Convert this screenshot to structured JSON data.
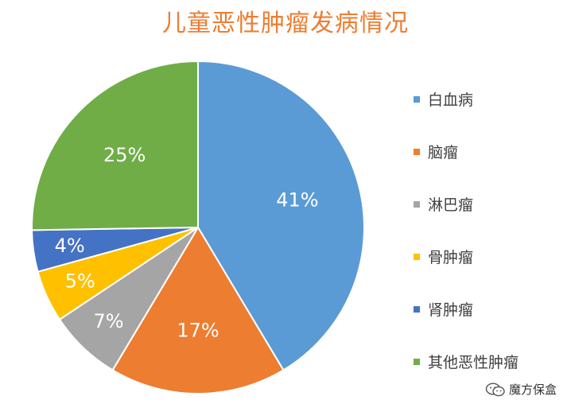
{
  "chart_data": {
    "type": "pie",
    "title": "儿童恶性肿瘤发病情况",
    "categories": [
      "白血病",
      "脑瘤",
      "淋巴瘤",
      "骨肿瘤",
      "肾肿瘤",
      "其他恶性肿瘤"
    ],
    "values": [
      41,
      17,
      7,
      5,
      4,
      25
    ],
    "labels": [
      "41%",
      "17%",
      "7%",
      "5%",
      "4%",
      "25%"
    ],
    "colors": [
      "#5B9BD5",
      "#ED7D31",
      "#A5A5A5",
      "#FFC000",
      "#4472C4",
      "#70AD47"
    ],
    "start_angle": "12 o'clock",
    "direction": "clockwise",
    "legend_position": "right"
  },
  "watermark": {
    "text": "魔方保盒",
    "icon": "wechat-logo-icon"
  }
}
